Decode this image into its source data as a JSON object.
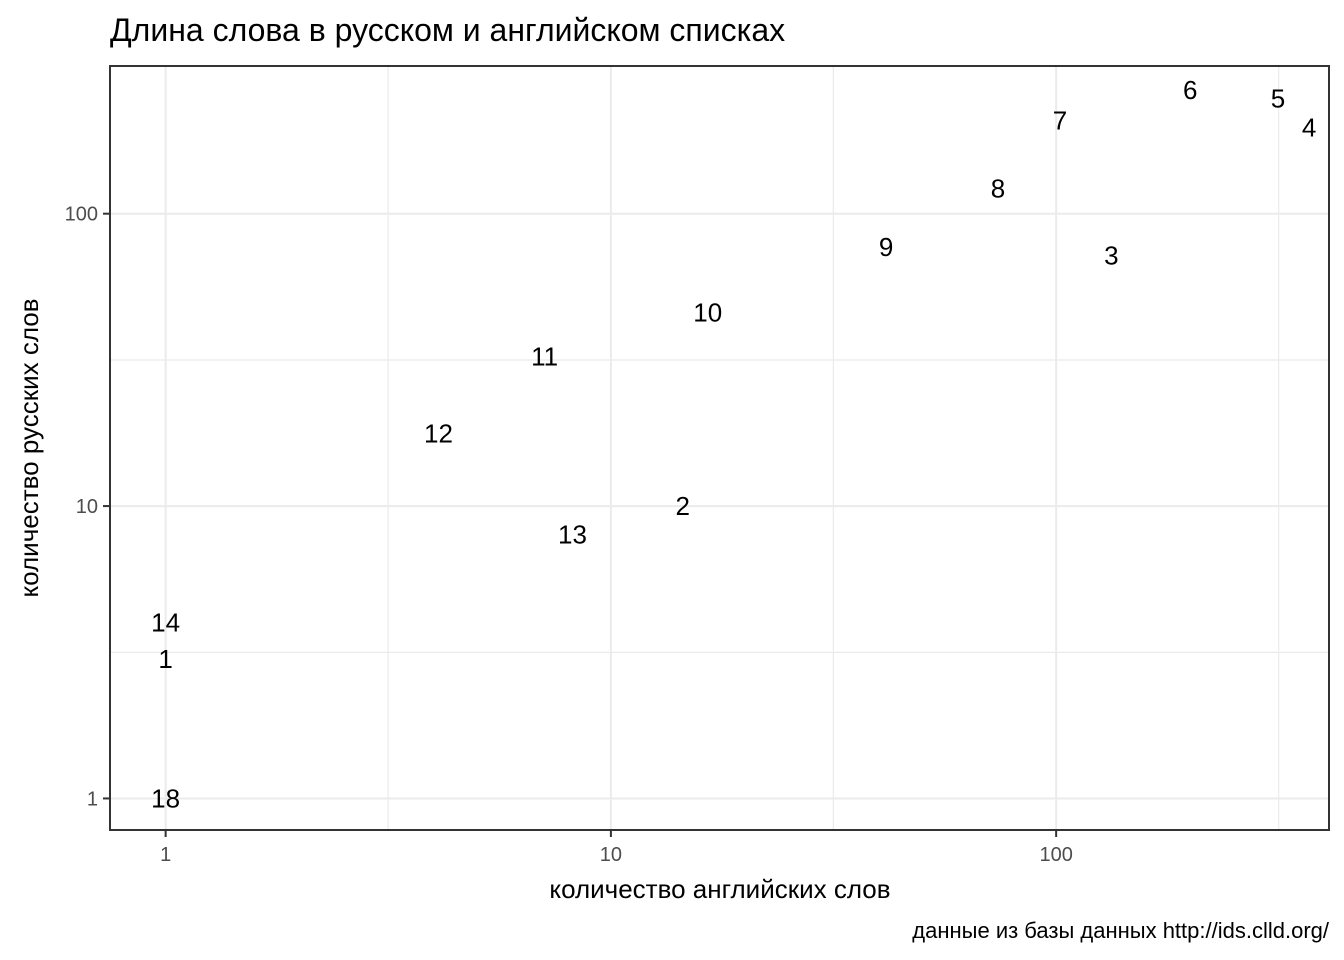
{
  "chart_data": {
    "type": "scatter",
    "title": "Длина слова в русском и английском списках",
    "xlabel": "количество английских слов",
    "ylabel": "количество русских слов",
    "caption": "данные из базы данных http://ids.clld.org/",
    "x_scale": "log10",
    "y_scale": "log10",
    "xlim": [
      0.75,
      410
    ],
    "ylim": [
      0.78,
      320
    ],
    "x_ticks": [
      {
        "value": 1,
        "label": "1"
      },
      {
        "value": 10,
        "label": "10"
      },
      {
        "value": 100,
        "label": "100"
      }
    ],
    "y_ticks": [
      {
        "value": 1,
        "label": "1"
      },
      {
        "value": 10,
        "label": "10"
      },
      {
        "value": 100,
        "label": "100"
      }
    ],
    "x_minor_grid": [
      3.16,
      31.6,
      316
    ],
    "y_minor_grid": [
      3.16,
      31.6
    ],
    "grid": true,
    "points": [
      {
        "label": "1",
        "x": 1,
        "y": 3
      },
      {
        "label": "2",
        "x": 14.5,
        "y": 10
      },
      {
        "label": "3",
        "x": 133,
        "y": 72
      },
      {
        "label": "4",
        "x": 370,
        "y": 197
      },
      {
        "label": "5",
        "x": 315,
        "y": 248
      },
      {
        "label": "6",
        "x": 200,
        "y": 265
      },
      {
        "label": "7",
        "x": 102,
        "y": 208
      },
      {
        "label": "8",
        "x": 74,
        "y": 122
      },
      {
        "label": "9",
        "x": 41.5,
        "y": 77
      },
      {
        "label": "10",
        "x": 16.5,
        "y": 46
      },
      {
        "label": "11",
        "x": 7.1,
        "y": 32.5
      },
      {
        "label": "12",
        "x": 4.1,
        "y": 17.7
      },
      {
        "label": "13",
        "x": 8.2,
        "y": 8
      },
      {
        "label": "14",
        "x": 1,
        "y": 4
      },
      {
        "label": "18",
        "x": 1,
        "y": 1
      }
    ]
  }
}
